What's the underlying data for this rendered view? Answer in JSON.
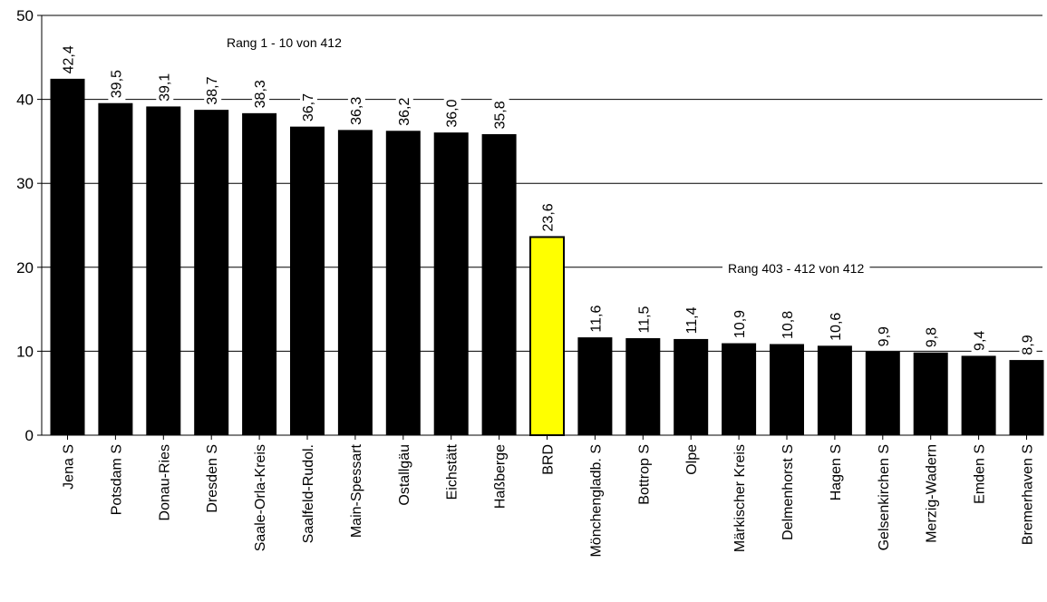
{
  "chart_data": {
    "type": "bar",
    "categories": [
      "Jena S",
      "Potsdam S",
      "Donau-Ries",
      "Dresden S",
      "Saale-Orla-Kreis",
      "Saalfeld-Rudol.",
      "Main-Spessart",
      "Ostallgäu",
      "Eichstätt",
      "Haßberge",
      "BRD",
      "Mönchengladb. S",
      "Bottrop S",
      "Olpe",
      "Märkischer Kreis",
      "Delmenhorst S",
      "Hagen S",
      "Gelsenkirchen S",
      "Merzig-Wadern",
      "Emden S",
      "Bremerhaven S"
    ],
    "values": [
      42.4,
      39.5,
      39.1,
      38.7,
      38.3,
      36.7,
      36.3,
      36.2,
      36.0,
      35.8,
      23.6,
      11.6,
      11.5,
      11.4,
      10.9,
      10.8,
      10.6,
      9.9,
      9.8,
      9.4,
      8.9
    ],
    "value_labels": [
      "42,4",
      "39,5",
      "39,1",
      "38,7",
      "38,3",
      "36,7",
      "36,3",
      "36,2",
      "36,0",
      "35,8",
      "23,6",
      "11,6",
      "11,5",
      "11,4",
      "10,9",
      "10,8",
      "10,6",
      "9,9",
      "9,8",
      "9,4",
      "8,9"
    ],
    "highlight_index": 10,
    "colors": {
      "bar": "#000000",
      "highlight": "#ffff00"
    },
    "ylim": [
      0,
      50
    ],
    "yticks": [
      0,
      10,
      20,
      30,
      40,
      50
    ],
    "grid": true,
    "annotations": [
      "Rang 1 - 10 von 412",
      "Rang 403 - 412 von 412"
    ]
  }
}
